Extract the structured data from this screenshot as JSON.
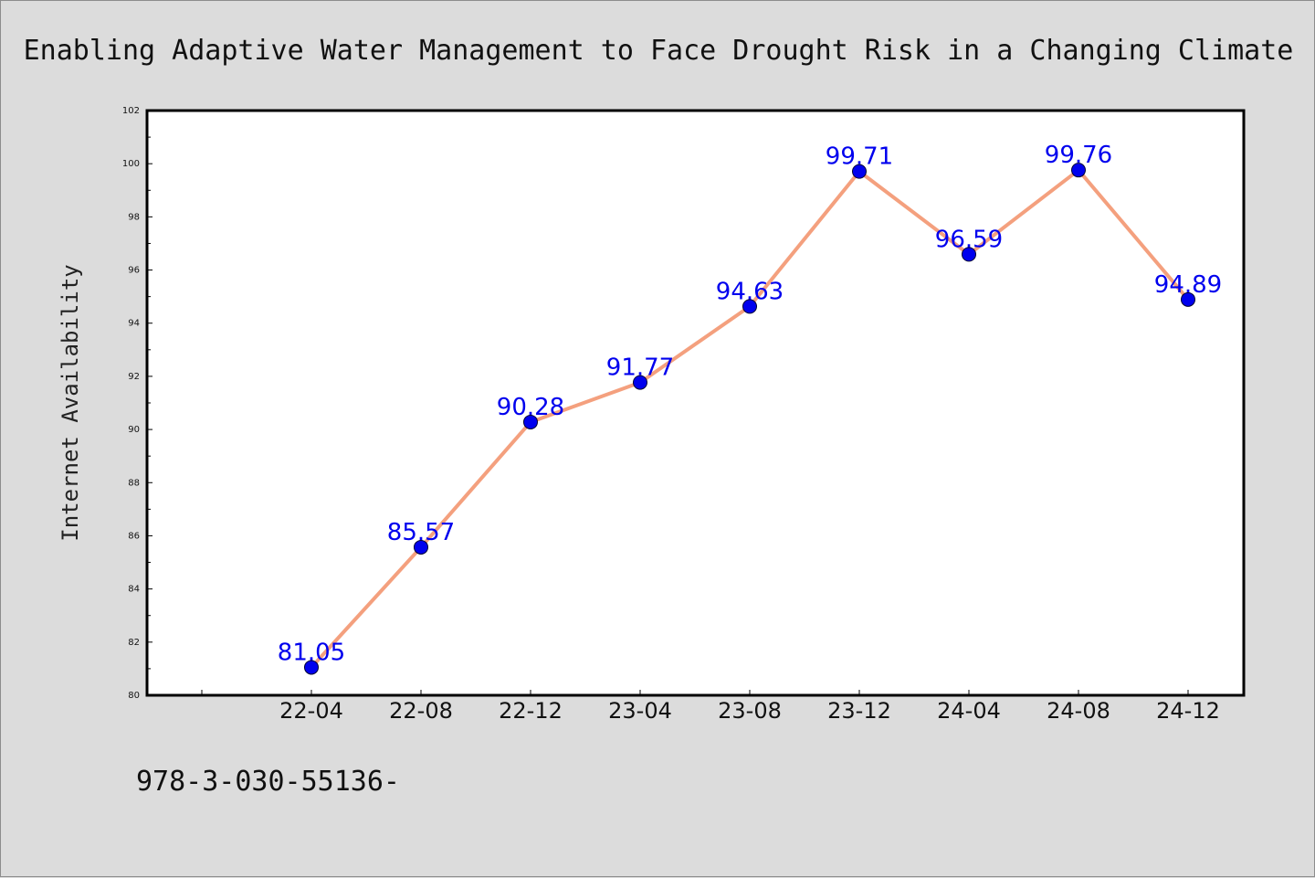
{
  "chart_data": {
    "type": "line",
    "title": "Enabling Adaptive Water Management to Face Drought Risk in a Changing Climate",
    "xlabel": "",
    "ylabel": "Internet Availability",
    "categories": [
      "22-04",
      "22-08",
      "22-12",
      "23-04",
      "23-08",
      "23-12",
      "24-04",
      "24-08",
      "24-12"
    ],
    "series": [
      {
        "values": [
          81.05,
          85.57,
          90.28,
          91.77,
          94.63,
          99.71,
          96.59,
          99.76,
          94.89
        ],
        "labels": [
          "81.05",
          "85.57",
          "90.28",
          "91.77",
          "94.63",
          "99.71",
          "96.59",
          "99.76",
          "94.89"
        ]
      }
    ],
    "ylim": [
      80,
      102
    ],
    "yticks": [
      "80",
      "82",
      "84",
      "86",
      "88",
      "90",
      "92",
      "94",
      "96",
      "98",
      "100",
      "102"
    ],
    "grid": false,
    "line_color": "#f4a07e",
    "marker_color": "#0000ee",
    "label_color": "#0000ee"
  },
  "footer_text": "978-3-030-55136-"
}
